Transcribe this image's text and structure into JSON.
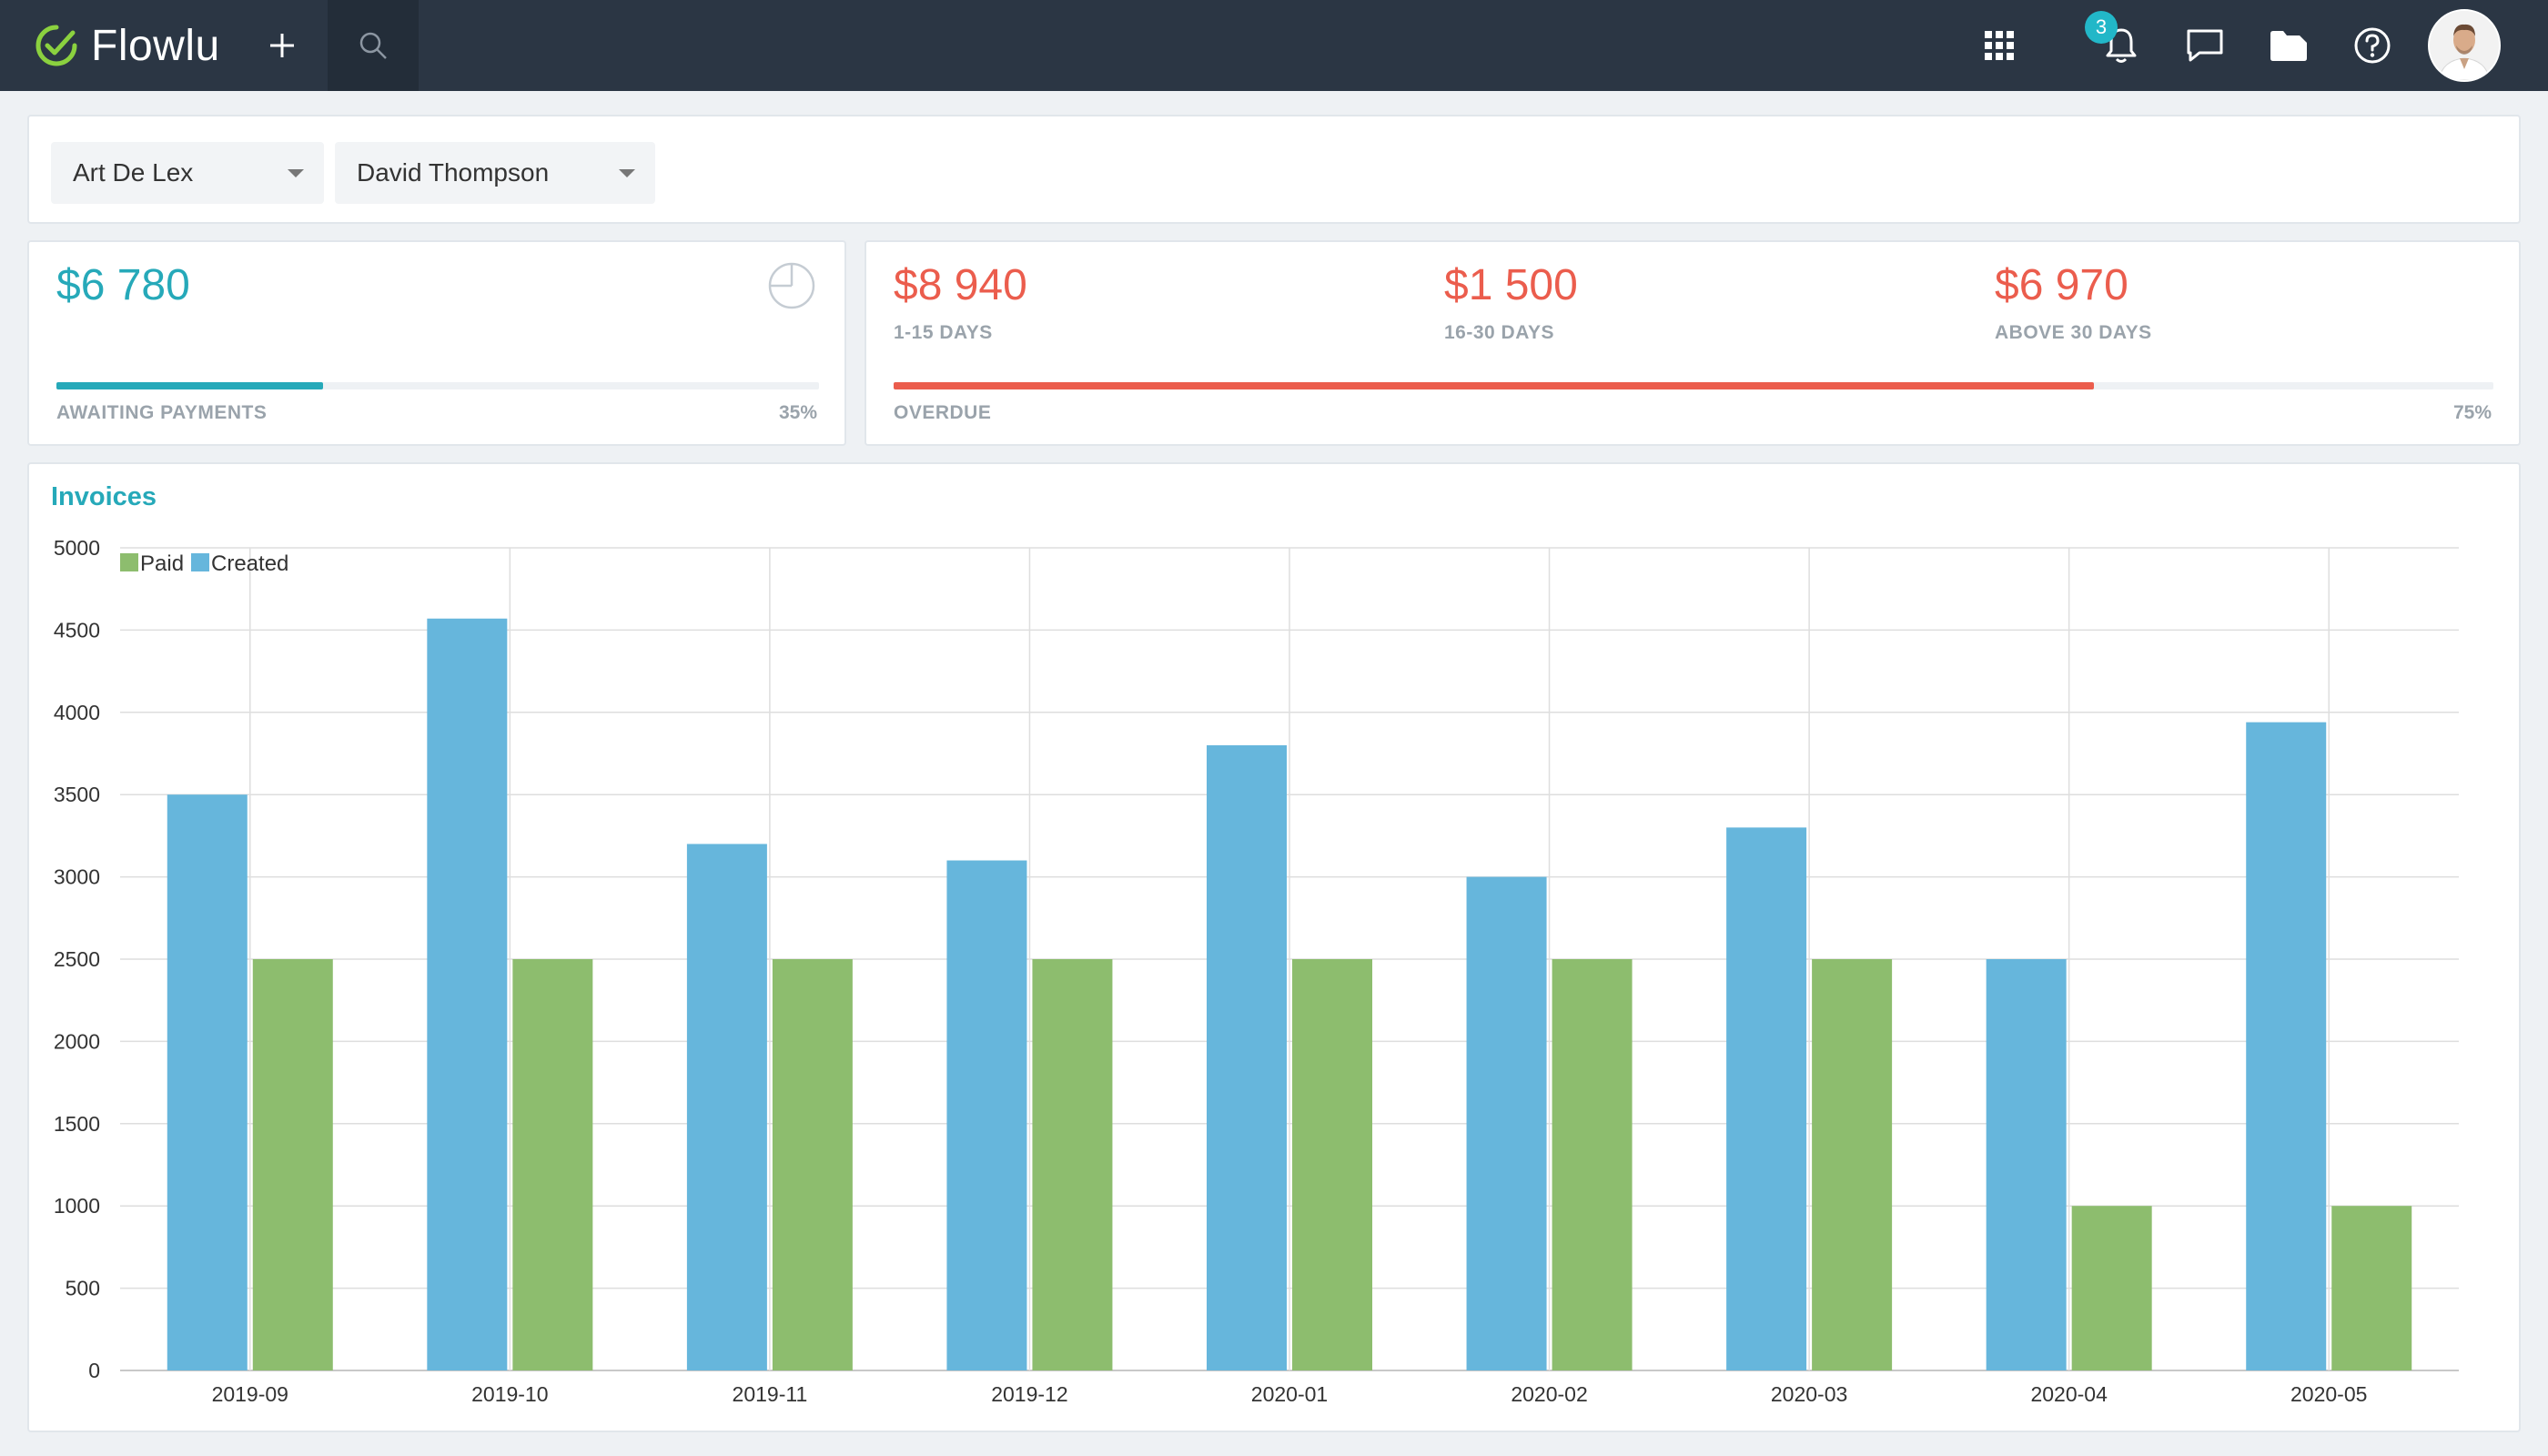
{
  "app": {
    "name": "Flowlu"
  },
  "topbar": {
    "notifications_count": "3",
    "icons": [
      "check-circle-logo-icon",
      "plus-icon",
      "search-icon",
      "apps-grid-icon",
      "bell-icon",
      "chat-icon",
      "folder-icon",
      "help-icon",
      "avatar"
    ]
  },
  "filters": {
    "company": "Art De Lex",
    "person": "David Thompson"
  },
  "awaiting": {
    "amount": "$6 780",
    "label": "AWAITING PAYMENTS",
    "percent_text": "35%",
    "progress": 0.35,
    "color": "#26a9b9"
  },
  "overdue": {
    "buckets": [
      {
        "amount": "$8 940",
        "label": "1-15 DAYS"
      },
      {
        "amount": "$1 500",
        "label": "16-30 DAYS"
      },
      {
        "amount": "$6 970",
        "label": "ABOVE 30 DAYS"
      }
    ],
    "label": "OVERDUE",
    "percent_text": "75%",
    "progress": 0.75,
    "color": "#eb5d4d"
  },
  "chart_data": {
    "type": "bar",
    "title": "Invoices",
    "categories": [
      "2019-09",
      "2019-10",
      "2019-11",
      "2019-12",
      "2020-01",
      "2020-02",
      "2020-03",
      "2020-04",
      "2020-05"
    ],
    "series": [
      {
        "name": "Created",
        "color": "#66b6dc",
        "values": [
          3500,
          4570,
          3200,
          3100,
          3800,
          3000,
          3300,
          2500,
          3940
        ]
      },
      {
        "name": "Paid",
        "color": "#8dbd6e",
        "values": [
          2500,
          2500,
          2500,
          2500,
          2500,
          2500,
          2500,
          1000,
          1000
        ]
      }
    ],
    "legend_order": [
      "Paid",
      "Created"
    ],
    "legend_position": "top-left",
    "yticks": [
      0,
      500,
      1000,
      1500,
      2000,
      2500,
      3000,
      3500,
      4000,
      4500,
      5000
    ],
    "ylim": [
      0,
      5000
    ],
    "grid": true
  }
}
